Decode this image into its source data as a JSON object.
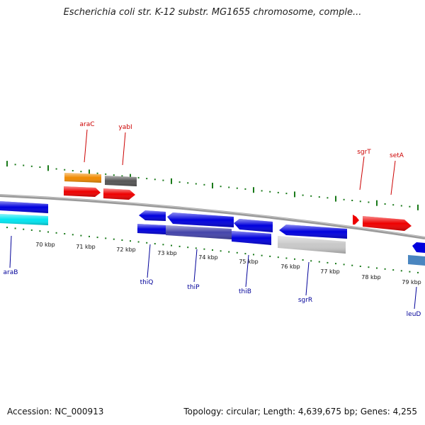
{
  "header": {
    "title": "Escherichia coli str. K-12 substr. MG1655 chromosome, comple..."
  },
  "footer": {
    "accession": "Accession: NC_000913",
    "stats": "Topology: circular; Length: 4,639,675 bp; Genes: 4,255"
  },
  "scale": {
    "ticks": [
      "70 kbp",
      "71 kbp",
      "72 kbp",
      "73 kbp",
      "74 kbp",
      "75 kbp",
      "76 kbp",
      "77 kbp",
      "78 kbp",
      "79 kbp"
    ]
  },
  "labels": {
    "top": [
      "araC",
      "yabI",
      "sgrT",
      "setA"
    ],
    "bottom": [
      "araB",
      "thiQ",
      "thiP",
      "thiB",
      "sgrR",
      "leuD"
    ]
  },
  "colors": {
    "forward_label": "#cc0000",
    "reverse_label": "#000099",
    "backbone": "#808080",
    "tick_green": "#1a7a1a",
    "gene_red": "#ee0000",
    "gene_orange": "#f08a00",
    "gene_dark_gray": "#555555",
    "gene_blue": "#0000dd",
    "gene_cyan": "#00e5f0",
    "gene_light_gray": "#c8c8c8",
    "gene_slate": "#4444aa",
    "gene_steel": "#4a86c0"
  }
}
